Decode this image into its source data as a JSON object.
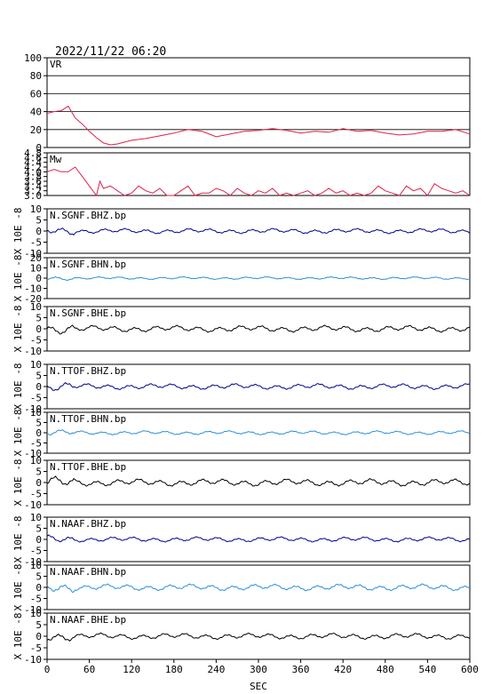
{
  "header": {
    "datetime": "2022/11/22 06:20"
  },
  "chart_data": {
    "type": "line",
    "x_axis": {
      "label": "SEC",
      "range": [
        0,
        600
      ],
      "ticks": [
        "0",
        "60",
        "120",
        "180",
        "240",
        "300",
        "360",
        "420",
        "480",
        "540",
        "600"
      ]
    },
    "panels": [
      {
        "id": "vr",
        "label": "VR",
        "ylim": [
          0,
          100
        ],
        "yticks": [
          "100",
          "80",
          "60",
          "40",
          "20",
          "0"
        ],
        "grid": true,
        "color": "#e0204a",
        "series": {
          "x": [
            0,
            10,
            20,
            30,
            40,
            50,
            60,
            70,
            80,
            90,
            100,
            120,
            140,
            160,
            180,
            200,
            220,
            240,
            260,
            280,
            300,
            320,
            340,
            360,
            380,
            400,
            420,
            440,
            460,
            480,
            500,
            520,
            540,
            560,
            580,
            600
          ],
          "y": [
            38,
            40,
            41,
            46,
            33,
            26,
            18,
            11,
            5,
            3,
            4,
            8,
            10,
            13,
            16,
            20,
            18,
            12,
            15,
            18,
            19,
            21,
            19,
            16,
            18,
            17,
            21,
            18,
            19,
            16,
            14,
            15,
            18,
            18,
            20,
            15
          ]
        }
      },
      {
        "id": "mw",
        "label": "Mw",
        "ylim": [
          3.0,
          4.8
        ],
        "yticks": [
          "4.8",
          "4.6",
          "4.4",
          "4.2",
          "4.0",
          "3.8",
          "3.6",
          "3.4",
          "3.2",
          "3.0"
        ],
        "color": "#e0204a",
        "series": {
          "x": [
            0,
            10,
            20,
            30,
            40,
            50,
            60,
            70,
            75,
            80,
            90,
            100,
            110,
            120,
            130,
            140,
            150,
            160,
            170,
            180,
            190,
            200,
            210,
            220,
            230,
            240,
            250,
            260,
            270,
            280,
            290,
            300,
            310,
            320,
            330,
            340,
            350,
            360,
            370,
            380,
            390,
            400,
            410,
            420,
            430,
            440,
            450,
            460,
            470,
            480,
            490,
            500,
            510,
            520,
            530,
            540,
            550,
            560,
            570,
            580,
            590,
            600
          ],
          "y": [
            4.0,
            4.1,
            4.0,
            4.0,
            4.2,
            3.8,
            3.4,
            3.0,
            3.6,
            3.3,
            3.4,
            3.2,
            3.0,
            3.1,
            3.4,
            3.2,
            3.1,
            3.3,
            3.0,
            3.0,
            3.2,
            3.4,
            3.0,
            3.1,
            3.1,
            3.3,
            3.2,
            3.0,
            3.3,
            3.1,
            3.0,
            3.2,
            3.1,
            3.3,
            3.0,
            3.1,
            3.0,
            3.1,
            3.2,
            3.0,
            3.1,
            3.3,
            3.1,
            3.2,
            3.0,
            3.1,
            3.0,
            3.1,
            3.4,
            3.2,
            3.1,
            3.0,
            3.4,
            3.2,
            3.3,
            3.0,
            3.5,
            3.3,
            3.2,
            3.1,
            3.2,
            3.0
          ]
        }
      },
      {
        "id": "sgnf-bhz",
        "label": "N.SGNF.BHZ.bp",
        "unit": "X 10E -8",
        "ylim": [
          -10,
          10
        ],
        "yticks": [
          "10",
          "5",
          "0",
          "-5",
          "-10"
        ],
        "color": "#00008b",
        "amp": 0.7
      },
      {
        "id": "sgnf-bhn",
        "label": "N.SGNF.BHN.bp",
        "unit": "X 10E -8",
        "ylim": [
          -20,
          20
        ],
        "yticks": [
          "20",
          "10",
          "0",
          "-10",
          "-20"
        ],
        "color": "#2a8fd8",
        "amp": 0.4
      },
      {
        "id": "sgnf-bhe",
        "label": "N.SGNF.BHE.bp",
        "unit": "X 10E -8",
        "ylim": [
          -10,
          10
        ],
        "yticks": [
          "10",
          "5",
          "0",
          "-5",
          "-10"
        ],
        "color": "#000000",
        "amp": 0.9
      },
      {
        "id": "ttof-bhz",
        "label": "N.TTOF.BHZ.bp",
        "unit": "X 10E -8",
        "ylim": [
          -10,
          10
        ],
        "yticks": [
          "10",
          "5",
          "0",
          "-5",
          "-10"
        ],
        "color": "#00008b",
        "amp": 0.8
      },
      {
        "id": "ttof-bhn",
        "label": "N.TTOF.BHN.bp",
        "unit": "X 10E -8",
        "ylim": [
          -10,
          10
        ],
        "yticks": [
          "10",
          "5",
          "0",
          "-5",
          "-10"
        ],
        "color": "#2a8fd8",
        "amp": 0.6
      },
      {
        "id": "ttof-bhe",
        "label": "N.TTOF.BHE.bp",
        "unit": "X 10E -8",
        "ylim": [
          -10,
          10
        ],
        "yticks": [
          "10",
          "5",
          "0",
          "-5",
          "-10"
        ],
        "color": "#000000",
        "amp": 1.0
      },
      {
        "id": "naaf-bhz",
        "label": "N.NAAF.BHZ.bp",
        "unit": "X 10E -8",
        "ylim": [
          -10,
          10
        ],
        "yticks": [
          "10",
          "5",
          "0",
          "-5",
          "-10"
        ],
        "color": "#00008b",
        "amp": 0.7
      },
      {
        "id": "naaf-bhn",
        "label": "N.NAAF.BHN.bp",
        "unit": "X 10E -8",
        "ylim": [
          -10,
          10
        ],
        "yticks": [
          "10",
          "5",
          "0",
          "-5",
          "-10"
        ],
        "color": "#2a8fd8",
        "amp": 0.9
      },
      {
        "id": "naaf-bhe",
        "label": "N.NAAF.BHE.bp",
        "unit": "X 10E -8",
        "ylim": [
          -10,
          10
        ],
        "yticks": [
          "10",
          "5",
          "0",
          "-5",
          "-10"
        ],
        "color": "#000000",
        "amp": 0.8
      }
    ]
  }
}
